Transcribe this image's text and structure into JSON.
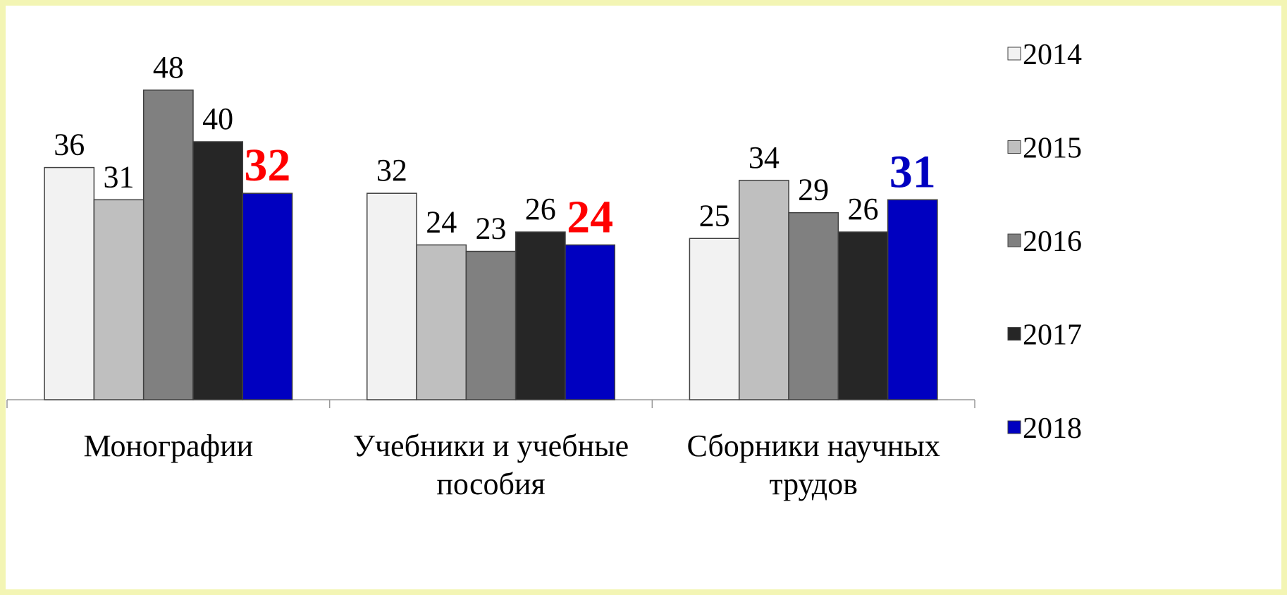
{
  "chart_data": {
    "type": "bar",
    "categories": [
      "Монографии",
      "Учебники и учебные пособия",
      "Сборники научных трудов"
    ],
    "series": [
      {
        "name": "2014",
        "color": "#f2f2f2",
        "values": [
          36,
          32,
          25
        ]
      },
      {
        "name": "2015",
        "color": "#bfbfbf",
        "values": [
          31,
          24,
          34
        ]
      },
      {
        "name": "2016",
        "color": "#808080",
        "values": [
          48,
          23,
          29
        ]
      },
      {
        "name": "2017",
        "color": "#262626",
        "values": [
          40,
          26,
          26
        ]
      },
      {
        "name": "2018",
        "color": "#0000c0",
        "values": [
          32,
          24,
          31
        ],
        "label_colors": [
          "#ff0000",
          "#ff0000",
          "#0000c0"
        ]
      }
    ],
    "legend": "right"
  }
}
